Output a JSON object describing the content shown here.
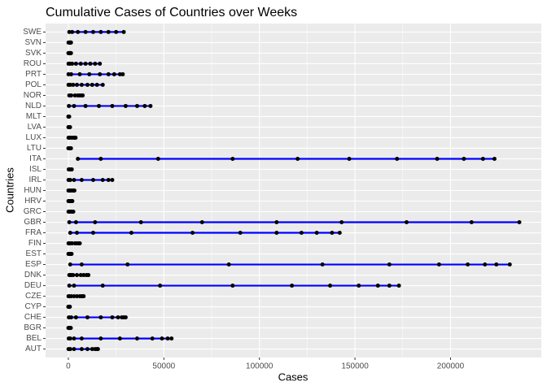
{
  "chart_data": {
    "type": "dot-range",
    "title": "Cumulative Cases of Countries over Weeks",
    "x_label": "Cases",
    "y_label": "Countries",
    "categories": [
      "AUT",
      "BEL",
      "BGR",
      "CHE",
      "CYP",
      "CZE",
      "DEU",
      "DNK",
      "ESP",
      "EST",
      "FIN",
      "FRA",
      "GBR",
      "GRC",
      "HRV",
      "HUN",
      "IRL",
      "ISL",
      "ITA",
      "LTU",
      "LUX",
      "LVA",
      "MLT",
      "NLD",
      "NOR",
      "POL",
      "PRT",
      "ROU",
      "SVK",
      "SVN",
      "SWE"
    ],
    "values": [
      [
        100,
        1000,
        3000,
        7000,
        10000,
        12500,
        14000,
        15000,
        15500
      ],
      [
        200,
        1000,
        3000,
        7000,
        17000,
        27000,
        36000,
        44000,
        49000,
        52000,
        54000
      ],
      [
        50,
        200,
        400,
        700,
        900,
        1100,
        1300
      ],
      [
        300,
        1500,
        4000,
        10000,
        17000,
        23000,
        26000,
        28000,
        29000,
        30000
      ],
      [
        20,
        100,
        300,
        500,
        700,
        800
      ],
      [
        100,
        500,
        1500,
        3000,
        4500,
        6000,
        7000,
        7500,
        8000
      ],
      [
        500,
        3000,
        18000,
        48000,
        86000,
        117000,
        137000,
        152000,
        162000,
        168000,
        173000
      ],
      [
        500,
        1000,
        1500,
        2500,
        4500,
        6500,
        8000,
        9500,
        10500
      ],
      [
        1000,
        7000,
        31000,
        84000,
        133000,
        168000,
        194000,
        209000,
        218000,
        224000,
        231000
      ],
      [
        50,
        300,
        700,
        1100,
        1400,
        1600,
        1700
      ],
      [
        100,
        400,
        1000,
        2000,
        3500,
        4500,
        5500,
        6000
      ],
      [
        1000,
        4500,
        13000,
        33000,
        65000,
        90000,
        109000,
        122000,
        130000,
        138000,
        142000
      ],
      [
        500,
        4000,
        14000,
        38000,
        70000,
        109000,
        143000,
        177000,
        211000,
        236000
      ],
      [
        100,
        400,
        900,
        1500,
        2000,
        2300,
        2500,
        2600
      ],
      [
        50,
        300,
        900,
        1400,
        1800,
        2000,
        2100
      ],
      [
        50,
        200,
        600,
        1000,
        1600,
        2400,
        2900,
        3200
      ],
      [
        100,
        1000,
        3000,
        7000,
        13000,
        18000,
        21000,
        23000
      ],
      [
        200,
        600,
        1000,
        1400,
        1700,
        1800
      ],
      [
        5000,
        17000,
        47000,
        86000,
        120000,
        147000,
        172000,
        193000,
        207000,
        217000,
        223000
      ],
      [
        20,
        200,
        500,
        900,
        1200,
        1400
      ],
      [
        100,
        600,
        1500,
        2500,
        3200,
        3600,
        3800
      ],
      [
        50,
        200,
        400,
        600,
        800,
        900
      ],
      [
        30,
        100,
        200,
        300,
        400,
        450
      ],
      [
        300,
        3000,
        9000,
        16000,
        23000,
        30000,
        36000,
        40000,
        43000
      ],
      [
        500,
        1500,
        3500,
        5000,
        6000,
        7000,
        7500
      ],
      [
        100,
        1000,
        2500,
        4500,
        7000,
        10000,
        12500,
        15000,
        18000
      ],
      [
        100,
        1500,
        6000,
        11000,
        16500,
        21000,
        24000,
        27000,
        28500
      ],
      [
        100,
        800,
        2000,
        4000,
        6500,
        9000,
        11500,
        14000,
        16500
      ],
      [
        50,
        200,
        500,
        700,
        1000,
        1200,
        1400
      ],
      [
        100,
        400,
        700,
        1000,
        1200,
        1300,
        1400
      ],
      [
        500,
        2000,
        5000,
        9000,
        13000,
        17000,
        21000,
        25000,
        29000
      ]
    ],
    "line_color": "#0000ff",
    "point_color": "#000000",
    "xlim": [
      -11900,
      247500
    ],
    "xticks": [
      0,
      50000,
      100000,
      150000,
      200000
    ],
    "grid": true
  }
}
